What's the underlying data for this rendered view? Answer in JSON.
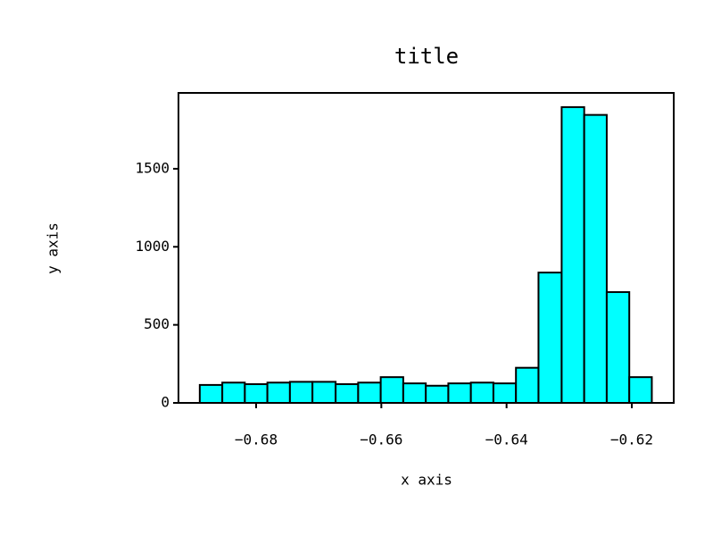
{
  "chart_data": {
    "type": "histogram",
    "title": "title",
    "x_label": "x axis",
    "y_label": "y axis",
    "bins": [
      -0.689,
      -0.6854,
      -0.6818,
      -0.6782,
      -0.6746,
      -0.671,
      -0.6673,
      -0.6637,
      -0.6601,
      -0.6565,
      -0.6529,
      -0.6493,
      -0.6457,
      -0.6421,
      -0.6385,
      -0.6349,
      -0.6312,
      -0.6276,
      -0.624,
      -0.6204,
      -0.6168
    ],
    "values": [
      115,
      130,
      120,
      130,
      135,
      135,
      120,
      130,
      165,
      125,
      110,
      125,
      130,
      125,
      225,
      835,
      1895,
      1845,
      710,
      165
    ],
    "color": "#00ffff",
    "edgecolor": "#000000",
    "xlim": [
      -0.6924,
      -0.6133
    ],
    "xticks": [
      {
        "value": -0.68,
        "label": "−0.68"
      },
      {
        "value": -0.66,
        "label": "−0.66"
      },
      {
        "value": -0.64,
        "label": "−0.64"
      },
      {
        "value": -0.62,
        "label": "−0.62"
      }
    ],
    "ylim": [
      0,
      1986
    ],
    "yticks": [
      0,
      500,
      1000,
      1500
    ],
    "grid": false
  }
}
